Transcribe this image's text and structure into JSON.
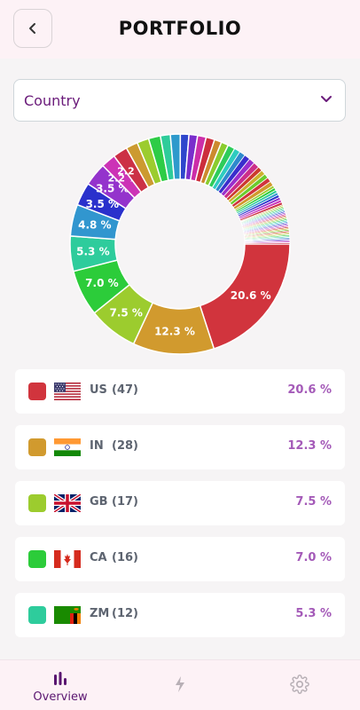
{
  "header": {
    "title": "PORTFOLIO"
  },
  "filter": {
    "selected": "Country"
  },
  "chart_data": {
    "type": "pie",
    "style": "donut",
    "unit": "%",
    "visible_labels": [
      "20.6 %",
      "12.3 %",
      "7.5 %",
      "7.0 %",
      "5.3 %",
      "4.8 %",
      "3.5 %",
      "3.5 %",
      "2.2 %",
      "2.2 %"
    ],
    "values": [
      20.6,
      12.3,
      7.5,
      7.0,
      5.3,
      4.8,
      3.5,
      3.5,
      2.2,
      2.2,
      1.8,
      1.8,
      1.8,
      1.5,
      1.5,
      1.3,
      1.3,
      1.3,
      1.3,
      1.1,
      1.1,
      1.1,
      0.9,
      0.9,
      0.9,
      0.9,
      0.9,
      0.7,
      0.7,
      0.7,
      0.7,
      0.7,
      0.4,
      0.4,
      0.4,
      0.4,
      0.4,
      0.4,
      0.4,
      0.4,
      0.2,
      0.2,
      0.2,
      0.2,
      0.2,
      0.2,
      0.2,
      0.2,
      0.2,
      0.2,
      0.2,
      0.2,
      0.2,
      0.2,
      0.2,
      0.2,
      0.2,
      0.2,
      0.2,
      0.2,
      0.2,
      0.2,
      0.2,
      0.2,
      0.2,
      0.2,
      0.2,
      0.2,
      0.2,
      0.2
    ],
    "colors": [
      "#d1343d",
      "#d19a2e",
      "#9ccc2e",
      "#2ccc3a",
      "#2ecc9c",
      "#3196cf",
      "#2a31cc",
      "#9433cc",
      "#cc33b6",
      "#cc3045",
      "#cc9a30",
      "#9ccc2e",
      "#2ecc46",
      "#2ecc9a",
      "#2e9acc",
      "#2e46cc",
      "#7a2ecc",
      "#cc2ea8",
      "#cc2e3c",
      "#cc8a2e",
      "#8acc2e",
      "#2ecc5a",
      "#2eccc0",
      "#2e8acc",
      "#3a2ecc",
      "#9a2ecc",
      "#cc2e8a",
      "#cc3a2e",
      "#ccb02e",
      "#6acc2e"
    ]
  },
  "countries": [
    {
      "code": "US",
      "count": "(47)",
      "percent": "20.6 %",
      "color": "#d1343d",
      "flag": "us"
    },
    {
      "code": "IN",
      "count": "(28)",
      "percent": "12.3 %",
      "color": "#d19a2e",
      "flag": "in"
    },
    {
      "code": "GB",
      "count": "(17)",
      "percent": "7.5 %",
      "color": "#9ccc2e",
      "flag": "gb"
    },
    {
      "code": "CA",
      "count": "(16)",
      "percent": "7.0 %",
      "color": "#2ccc3a",
      "flag": "ca"
    },
    {
      "code": "ZM",
      "count": "(12)",
      "percent": "5.3 %",
      "color": "#2ecc9c",
      "flag": "zm"
    }
  ],
  "nav": {
    "overview_label": "Overview",
    "active_color": "#5a1670",
    "inactive_color": "#b8b0b6"
  }
}
